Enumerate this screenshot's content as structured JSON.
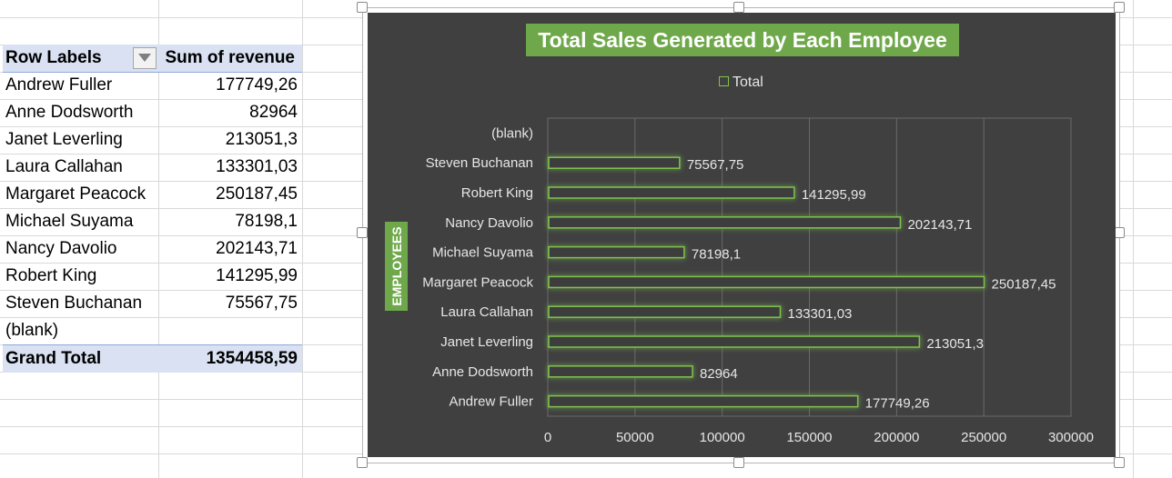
{
  "pivot": {
    "header": {
      "row_label": "Row Labels",
      "sum_label": "Sum of revenue"
    },
    "rows": [
      {
        "label": "Andrew Fuller",
        "value": "177749,26"
      },
      {
        "label": "Anne Dodsworth",
        "value": "82964"
      },
      {
        "label": "Janet Leverling",
        "value": "213051,3"
      },
      {
        "label": "Laura Callahan",
        "value": "133301,03"
      },
      {
        "label": "Margaret Peacock",
        "value": "250187,45"
      },
      {
        "label": "Michael Suyama",
        "value": "78198,1"
      },
      {
        "label": "Nancy Davolio",
        "value": "202143,71"
      },
      {
        "label": "Robert King",
        "value": "141295,99"
      },
      {
        "label": "Steven Buchanan",
        "value": "75567,75"
      },
      {
        "label": "(blank)",
        "value": ""
      }
    ],
    "grand_total": {
      "label": "Grand Total",
      "value": "1354458,59"
    },
    "filter_icon": "dropdown-filter-icon"
  },
  "chart_data": {
    "type": "bar",
    "orientation": "horizontal",
    "title": "Total Sales Generated by Each Employee",
    "ylabel": "EMPLOYEES",
    "xlabel": "",
    "legend": {
      "entries": [
        "Total"
      ],
      "placement": "top"
    },
    "categories": [
      "Andrew Fuller",
      "Anne Dodsworth",
      "Janet Leverling",
      "Laura Callahan",
      "Margaret Peacock",
      "Michael Suyama",
      "Nancy Davolio",
      "Robert King",
      "Steven Buchanan",
      "(blank)"
    ],
    "series": [
      {
        "name": "Total",
        "values": [
          177749.26,
          82964,
          213051.3,
          133301.03,
          250187.45,
          78198.1,
          202143.71,
          141295.99,
          75567.75,
          null
        ],
        "labels": [
          "177749,26",
          "82964",
          "213051,3",
          "133301,03",
          "250187,45",
          "78198,1",
          "202143,71",
          "141295,99",
          "75567,75",
          ""
        ]
      }
    ],
    "xlim": [
      0,
      300000
    ],
    "xticks": [
      0,
      50000,
      100000,
      150000,
      200000,
      250000,
      300000
    ],
    "xtick_labels": [
      "0",
      "50000",
      "100000",
      "150000",
      "200000",
      "250000",
      "300000"
    ],
    "grid": true,
    "colors": {
      "background": "#404040",
      "bar_outline": "#7fc34e",
      "bar_glow": "#8fd14f",
      "title_bg": "#6fa84a",
      "text": "#e6e6e6",
      "gridline": "#6a6a6a"
    }
  }
}
